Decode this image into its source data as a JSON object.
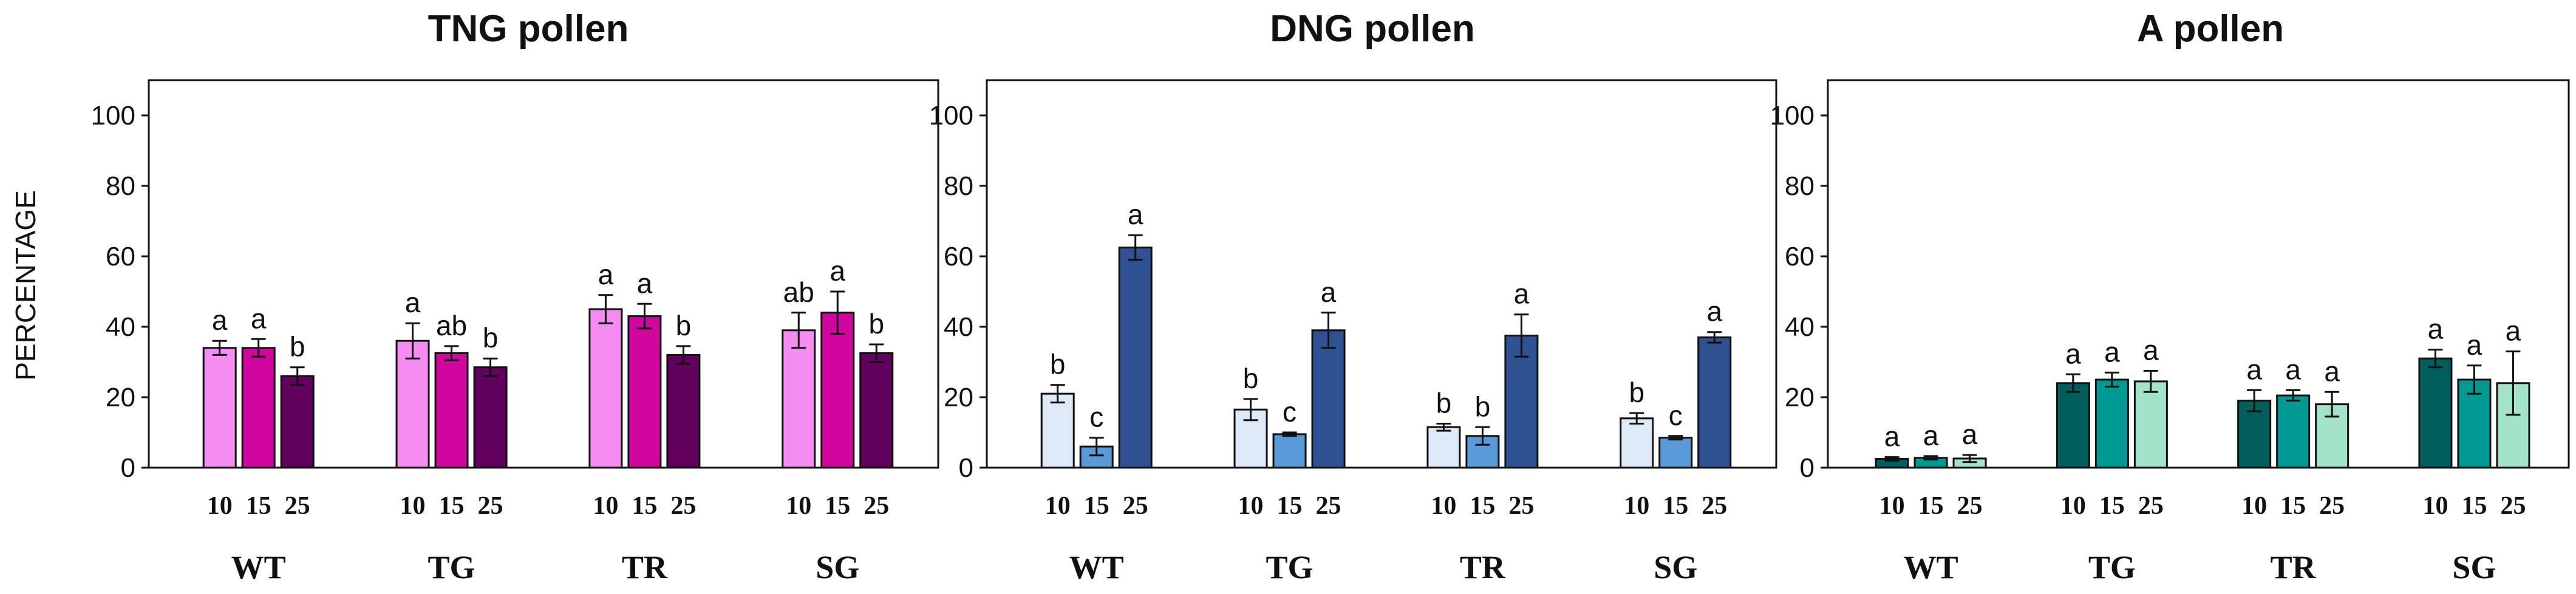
{
  "y_axis_label": "PERCENTAGE",
  "chart_data": [
    {
      "type": "bar",
      "title": "TNG pollen",
      "ylabel": "PERCENTAGE",
      "ylim": [
        0,
        110
      ],
      "yticks": [
        "0",
        "20",
        "40",
        "60",
        "80",
        "100"
      ],
      "groups": [
        "WT",
        "TG",
        "TR",
        "SG"
      ],
      "sub_categories": [
        "10",
        "15",
        "25"
      ],
      "series_colors": [
        "#f58cf2",
        "#d0069e",
        "#62005e"
      ],
      "values": [
        [
          34,
          34,
          26
        ],
        [
          36,
          32.5,
          28.5
        ],
        [
          45,
          43,
          32
        ],
        [
          39,
          44,
          32.5
        ]
      ],
      "errors": [
        [
          2,
          2.5,
          2.5
        ],
        [
          5,
          2,
          2.5
        ],
        [
          4,
          3.5,
          2.5
        ],
        [
          5,
          6,
          2.5
        ]
      ],
      "letters": [
        [
          "a",
          "a",
          "b"
        ],
        [
          "a",
          "ab",
          "b"
        ],
        [
          "a",
          "a",
          "b"
        ],
        [
          "ab",
          "a",
          "b"
        ]
      ]
    },
    {
      "type": "bar",
      "title": "DNG pollen",
      "ylabel": "",
      "ylim": [
        0,
        110
      ],
      "yticks": [
        "0",
        "20",
        "40",
        "60",
        "80",
        "100"
      ],
      "groups": [
        "WT",
        "TG",
        "TR",
        "SG"
      ],
      "sub_categories": [
        "10",
        "15",
        "25"
      ],
      "series_colors": [
        "#dde9f7",
        "#5b9ad8",
        "#2e5192"
      ],
      "values": [
        [
          21,
          6,
          62.5
        ],
        [
          16.5,
          9.5,
          39
        ],
        [
          11.5,
          9,
          37.5
        ],
        [
          14,
          8.5,
          37
        ]
      ],
      "errors": [
        [
          2.5,
          2.5,
          3.5
        ],
        [
          3,
          0.5,
          5
        ],
        [
          1,
          2.5,
          6
        ],
        [
          1.5,
          0.5,
          1.5
        ]
      ],
      "letters": [
        [
          "b",
          "c",
          "a"
        ],
        [
          "b",
          "c",
          "a"
        ],
        [
          "b",
          "b",
          "a"
        ],
        [
          "b",
          "c",
          "a"
        ]
      ]
    },
    {
      "type": "bar",
      "title": "A pollen",
      "ylabel": "",
      "ylim": [
        0,
        110
      ],
      "yticks": [
        "0",
        "20",
        "40",
        "60",
        "80",
        "100"
      ],
      "groups": [
        "WT",
        "TG",
        "TR",
        "SG"
      ],
      "sub_categories": [
        "10",
        "15",
        "25"
      ],
      "series_colors": [
        "#005f5c",
        "#009a93",
        "#a3e3c9"
      ],
      "values": [
        [
          2.5,
          2.8,
          2.6
        ],
        [
          24,
          25,
          24.5
        ],
        [
          19,
          20.5,
          18
        ],
        [
          31,
          25,
          24
        ]
      ],
      "errors": [
        [
          0.5,
          0.5,
          1
        ],
        [
          2.5,
          2,
          3
        ],
        [
          3,
          1.5,
          3.5
        ],
        [
          2.5,
          4,
          9
        ]
      ],
      "letters": [
        [
          "a",
          "a",
          "a"
        ],
        [
          "a",
          "a",
          "a"
        ],
        [
          "a",
          "a",
          "a"
        ],
        [
          "a",
          "a",
          "a"
        ]
      ]
    }
  ]
}
